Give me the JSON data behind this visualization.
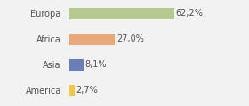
{
  "categories": [
    "America",
    "Asia",
    "Africa",
    "Europa"
  ],
  "values": [
    2.7,
    8.1,
    27.0,
    62.2
  ],
  "colors": [
    "#f0c848",
    "#6a7fb5",
    "#e8a97a",
    "#b5c98e"
  ],
  "labels": [
    "2,7%",
    "8,1%",
    "27,0%",
    "62,2%"
  ],
  "xlim": [
    0,
    80
  ],
  "background_color": "#f2f2f2",
  "label_fontsize": 7,
  "tick_fontsize": 7,
  "bar_height": 0.45
}
